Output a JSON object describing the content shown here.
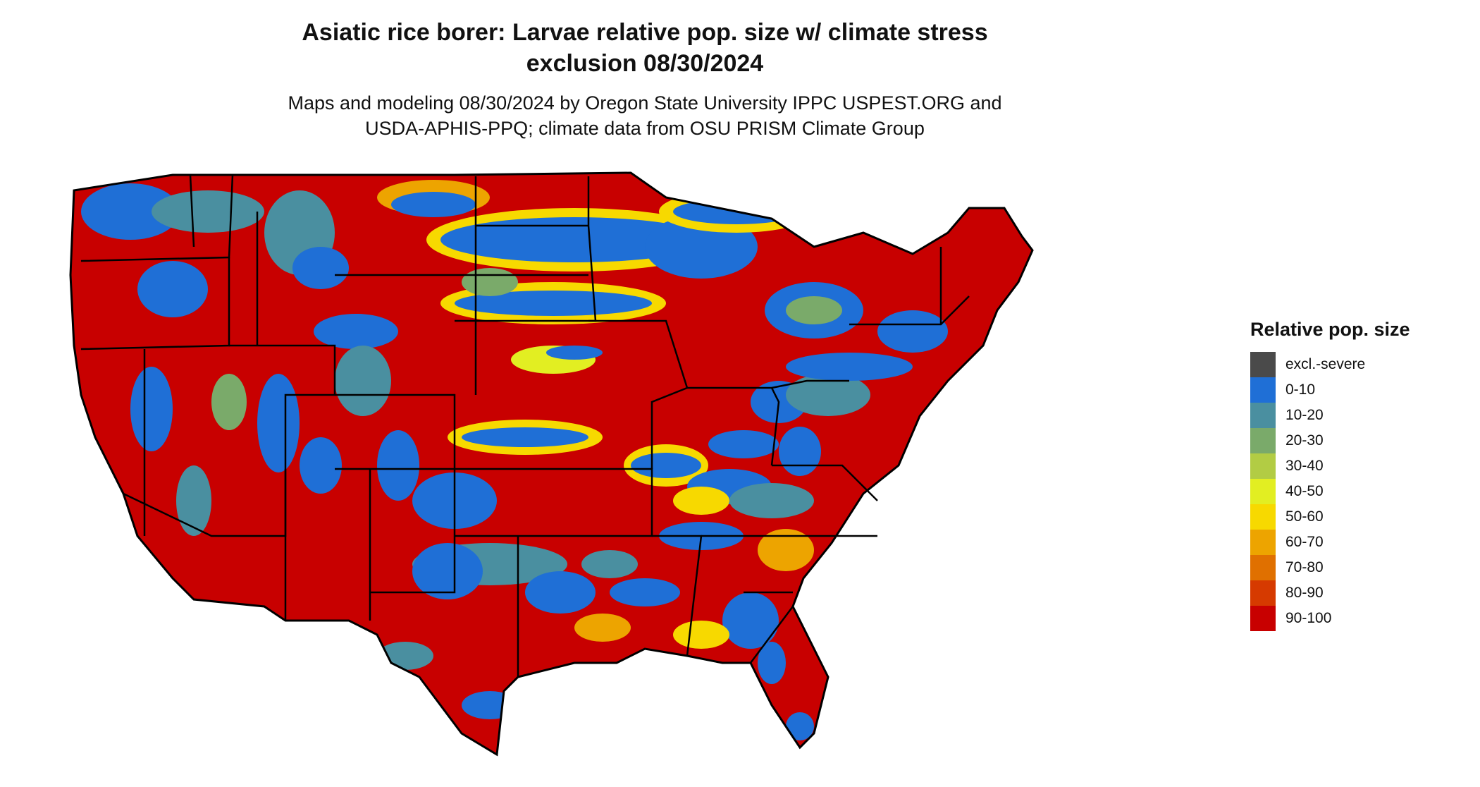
{
  "title": {
    "line1": "Asiatic rice borer: Larvae relative pop. size w/ climate stress",
    "line2": "exclusion 08/30/2024"
  },
  "subtitle": {
    "line1": "Maps and modeling 08/30/2024 by Oregon State University IPPC USPEST.ORG and",
    "line2": "USDA-APHIS-PPQ; climate data from OSU PRISM Climate Group"
  },
  "legend": {
    "title": "Relative pop. size",
    "items": [
      {
        "label": "excl.-severe",
        "color": "#4a4a4a"
      },
      {
        "label": "0-10",
        "color": "#1f6fd6"
      },
      {
        "label": "10-20",
        "color": "#4a8fa0"
      },
      {
        "label": "20-30",
        "color": "#7aaa6a"
      },
      {
        "label": "30-40",
        "color": "#b2cc44"
      },
      {
        "label": "40-50",
        "color": "#e2ee22"
      },
      {
        "label": "50-60",
        "color": "#f7d900"
      },
      {
        "label": "60-70",
        "color": "#eda400"
      },
      {
        "label": "70-80",
        "color": "#e07000"
      },
      {
        "label": "80-90",
        "color": "#d63a00"
      },
      {
        "label": "90-100",
        "color": "#c80000"
      }
    ]
  }
}
